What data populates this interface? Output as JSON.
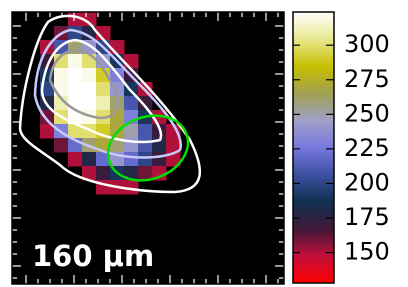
{
  "chart_data": {
    "type": "heatmap",
    "annotation": "160 μm",
    "z": [
      [
        null,
        null,
        null,
        150,
        150,
        null,
        null,
        null,
        null,
        null,
        null,
        null,
        null
      ],
      [
        null,
        null,
        160,
        200,
        180,
        150,
        null,
        null,
        null,
        null,
        null,
        null,
        null
      ],
      [
        null,
        150,
        210,
        260,
        240,
        200,
        150,
        null,
        null,
        null,
        null,
        null,
        null
      ],
      [
        null,
        170,
        300,
        320,
        300,
        240,
        190,
        150,
        null,
        null,
        null,
        null,
        null
      ],
      [
        null,
        190,
        320,
        324,
        320,
        290,
        230,
        170,
        null,
        null,
        null,
        null,
        null
      ],
      [
        null,
        200,
        320,
        324,
        324,
        300,
        240,
        190,
        150,
        null,
        null,
        null,
        null
      ],
      [
        null,
        180,
        310,
        324,
        324,
        310,
        260,
        210,
        170,
        null,
        null,
        null,
        null
      ],
      [
        null,
        160,
        300,
        324,
        320,
        300,
        270,
        230,
        190,
        150,
        null,
        null,
        null
      ],
      [
        null,
        150,
        230,
        300,
        300,
        290,
        270,
        250,
        210,
        170,
        150,
        null,
        null
      ],
      [
        null,
        null,
        160,
        220,
        260,
        270,
        260,
        240,
        210,
        180,
        150,
        null,
        null
      ],
      [
        null,
        null,
        null,
        150,
        180,
        220,
        240,
        220,
        200,
        170,
        150,
        null,
        null
      ],
      [
        null,
        null,
        null,
        null,
        150,
        170,
        190,
        180,
        160,
        150,
        null,
        null,
        null
      ],
      [
        null,
        null,
        null,
        null,
        null,
        150,
        150,
        150,
        null,
        null,
        null,
        null,
        null
      ]
    ],
    "clim": [
      128,
      324
    ],
    "cticks": [
      150,
      175,
      200,
      225,
      250,
      275,
      300
    ],
    "colormap": [
      "#ff0000",
      "#c0103a",
      "#401838",
      "#103050",
      "#3c50a0",
      "#7878e0",
      "#a0a0c8",
      "#a0a050",
      "#c8c000",
      "#e8e890",
      "#ffffff"
    ],
    "background": "#000000"
  }
}
